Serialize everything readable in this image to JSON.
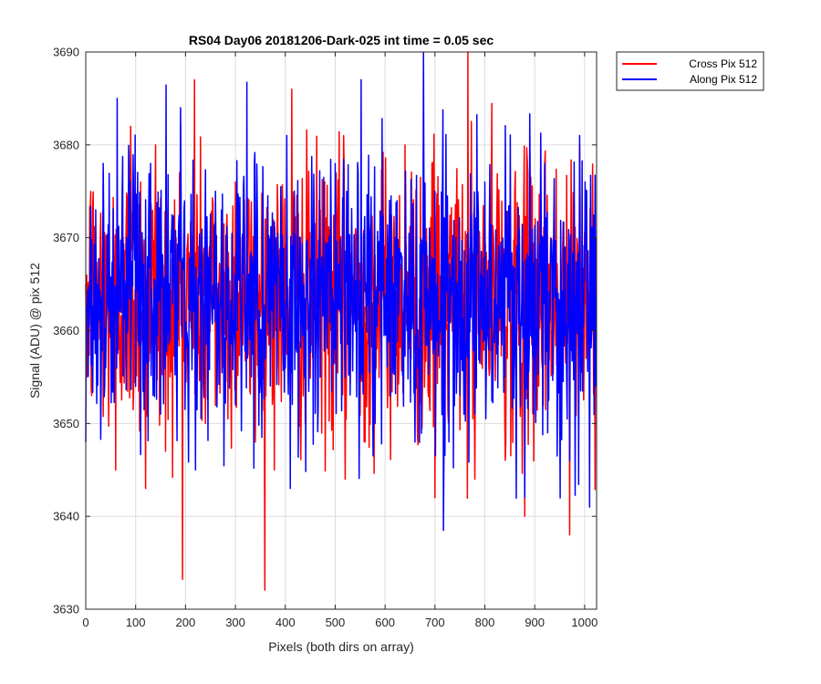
{
  "chart_data": {
    "type": "line",
    "title": "RS04 Day06 20181206-Dark-025 int time = 0.05 sec",
    "xlabel": "Pixels (both dirs on array)",
    "ylabel": "Signal (ADU) @ pix 512",
    "xlim": [
      0,
      1024
    ],
    "ylim": [
      3630,
      3690
    ],
    "xticks": [
      0,
      100,
      200,
      300,
      400,
      500,
      600,
      700,
      800,
      900,
      1000
    ],
    "yticks": [
      3630,
      3640,
      3650,
      3660,
      3670,
      3680,
      3690
    ],
    "grid": true,
    "legend_position": "outside top-right",
    "noise": {
      "mean": 3663.5,
      "std": 7.5,
      "n_points": 1024
    },
    "series": [
      {
        "name": "Cross Pix 512",
        "color": "#ff0000",
        "x": [
          0,
          10,
          40,
          60,
          75,
          90,
          100,
          110,
          120,
          140,
          160,
          190,
          200,
          218,
          240,
          270,
          300,
          340,
          360,
          380,
          400,
          413,
          440,
          470,
          490,
          520,
          540,
          560,
          600,
          640,
          680,
          700,
          740,
          766,
          780,
          800,
          840,
          860,
          880,
          920,
          950,
          970,
          990,
          1010,
          1024
        ],
        "values": [
          3665,
          3675,
          3660,
          3645,
          3670,
          3682,
          3656,
          3676,
          3643,
          3680,
          3647,
          3682,
          3655,
          3687,
          3650,
          3660,
          3676,
          3648,
          3672,
          3660,
          3657,
          3686,
          3650,
          3673,
          3661,
          3644,
          3670,
          3648,
          3660,
          3680,
          3657,
          3642,
          3668,
          3690,
          3644,
          3670,
          3650,
          3675,
          3640,
          3678,
          3655,
          3638,
          3680,
          3655,
          3670
        ]
      },
      {
        "name": "Along Pix 512",
        "color": "#0000ff",
        "x": [
          0,
          20,
          40,
          63,
          80,
          100,
          130,
          150,
          190,
          200,
          220,
          260,
          300,
          330,
          360,
          410,
          430,
          470,
          500,
          540,
          552,
          580,
          620,
          660,
          700,
          740,
          780,
          800,
          840,
          880,
          920,
          970,
          990,
          1010,
          1024
        ],
        "values": [
          3648,
          3673,
          3656,
          3685,
          3660,
          3654,
          3678,
          3651,
          3684,
          3660,
          3645,
          3675,
          3652,
          3668,
          3657,
          3643,
          3670,
          3655,
          3678,
          3661,
          3687,
          3650,
          3670,
          3648,
          3675,
          3660,
          3651,
          3676,
          3655,
          3642,
          3678,
          3646,
          3681,
          3641,
          3660
        ]
      }
    ]
  }
}
